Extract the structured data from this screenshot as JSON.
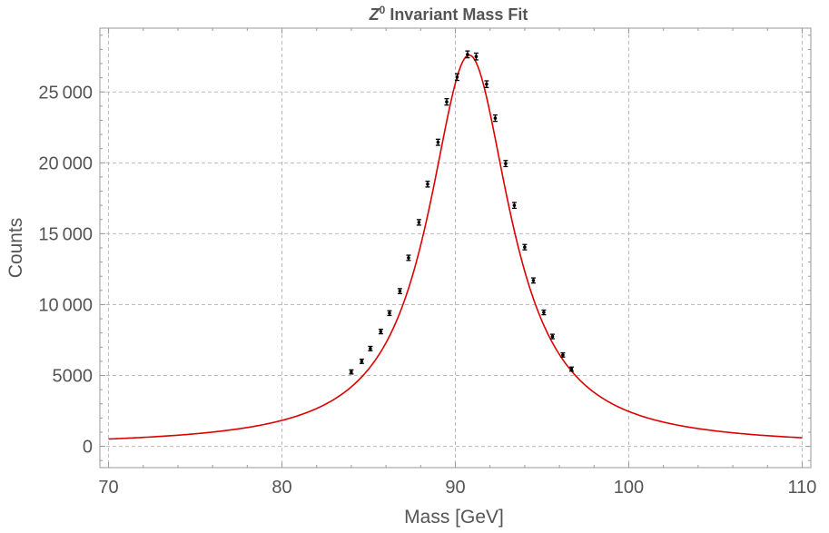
{
  "chart_data": {
    "type": "scatter",
    "title": {
      "symbol": "Z",
      "superscript": "0",
      "text": " Invariant Mass Fit"
    },
    "xlabel": "Mass [GeV]",
    "ylabel": "Counts",
    "xlim": [
      69.5,
      110.5
    ],
    "ylim": [
      -1500,
      29500
    ],
    "grid": true,
    "x_ticks": [
      70,
      80,
      90,
      100,
      110
    ],
    "x_tick_labels": [
      "70",
      "80",
      "90",
      "100",
      "110"
    ],
    "y_ticks": [
      0,
      5000,
      10000,
      15000,
      20000,
      25000
    ],
    "y_tick_labels": [
      "0",
      "5000",
      "10 000",
      "15 000",
      "20 000",
      "25 000"
    ],
    "series": [
      {
        "kind": "data-with-errorbars",
        "color": "#000000",
        "x": [
          84.0,
          84.6,
          85.1,
          85.7,
          86.2,
          86.8,
          87.3,
          87.9,
          88.4,
          89.0,
          89.5,
          90.1,
          90.7,
          91.2,
          91.8,
          92.3,
          92.9,
          93.4,
          94.0,
          94.5,
          95.1,
          95.6,
          96.2,
          96.7
        ],
        "y": [
          5250,
          6000,
          6900,
          8100,
          9400,
          10950,
          13300,
          15800,
          18500,
          21450,
          24300,
          26050,
          27650,
          27500,
          25550,
          23150,
          19950,
          17000,
          14050,
          11700,
          9450,
          7750,
          6450,
          5450
        ],
        "yerr": [
          80,
          85,
          90,
          95,
          105,
          110,
          120,
          130,
          140,
          150,
          160,
          170,
          175,
          175,
          170,
          160,
          150,
          140,
          125,
          115,
          100,
          95,
          85,
          80
        ]
      },
      {
        "kind": "fit-curve",
        "model": "Breit-Wigner (Lorentzian)",
        "color": "#dd0000",
        "peak_x": 90.8,
        "peak_y": 27600,
        "half_width": 2.88,
        "x_range": [
          70,
          110
        ]
      }
    ]
  }
}
